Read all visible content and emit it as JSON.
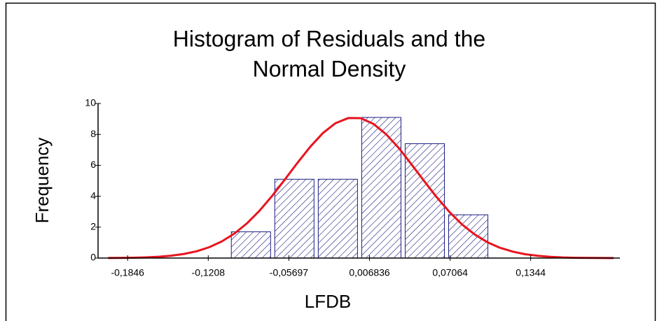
{
  "chart_data": {
    "type": "histogram",
    "title": [
      "Histogram of Residuals and the",
      "Normal Density"
    ],
    "xlabel": "LFDB",
    "ylabel": "Frequency",
    "bins": [
      -0.1042,
      -0.0698,
      -0.0354,
      -0.001,
      0.0334,
      0.0678,
      0.1022
    ],
    "values": [
      1.7,
      5.1,
      5.1,
      9.1,
      7.4,
      2.8
    ],
    "color": "#1c1c80",
    "density": {
      "color": "#e8141e",
      "x": [
        -0.2,
        -0.19,
        -0.18,
        -0.17,
        -0.16,
        -0.15,
        -0.14,
        -0.13,
        -0.12,
        -0.11,
        -0.1,
        -0.09,
        -0.08,
        -0.07,
        -0.06,
        -0.05,
        -0.04,
        -0.03,
        -0.02,
        -0.01,
        0,
        0.01,
        0.02,
        0.03,
        0.04,
        0.05,
        0.06,
        0.07,
        0.08,
        0.09,
        0.1,
        0.11,
        0.12,
        0.13,
        0.14,
        0.15,
        0.16,
        0.17,
        0.18,
        0.19,
        0.2
      ],
      "values": [
        0.006,
        0.012,
        0.024,
        0.046,
        0.086,
        0.154,
        0.266,
        0.441,
        0.7,
        1.08,
        1.59,
        2.26,
        3.08,
        4.04,
        5.1,
        6.18,
        7.21,
        8.09,
        8.73,
        9.06,
        9.05,
        8.68,
        8.01,
        7.12,
        6.07,
        4.99,
        3.94,
        2.99,
        2.18,
        1.53,
        1.03,
        0.67,
        0.42,
        0.25,
        0.15,
        0.08,
        0.04,
        0.02,
        0.01,
        0.005,
        0.002
      ]
    },
    "xlim": [
      -0.208,
      0.205
    ],
    "ylim": [
      0,
      10
    ],
    "xticks": [
      {
        "value": -0.1846,
        "label": "-0,1846"
      },
      {
        "value": -0.1208,
        "label": "-0,1208"
      },
      {
        "value": -0.05697,
        "label": "-0,05697"
      },
      {
        "value": 0.006836,
        "label": "0,006836"
      },
      {
        "value": 0.07064,
        "label": "0,07064"
      },
      {
        "value": 0.1344,
        "label": "0,1344"
      }
    ],
    "yticks": [
      0,
      2,
      4,
      6,
      8,
      10
    ]
  }
}
